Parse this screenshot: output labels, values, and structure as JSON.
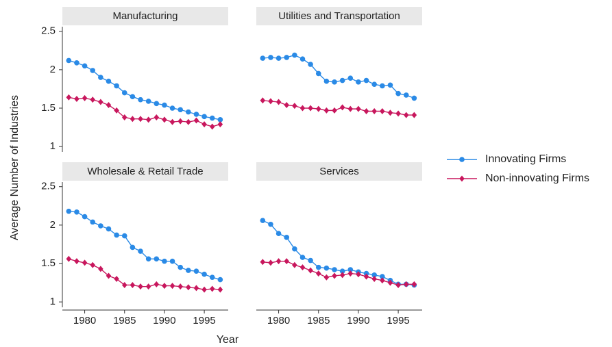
{
  "chart_data": {
    "type": "line",
    "xlabel": "Year",
    "ylabel": "Average Number of Industries",
    "legend": [
      {
        "name": "Innovating Firms",
        "color": "#2a8ae6",
        "marker": "circle"
      },
      {
        "name": "Non-innovating Firms",
        "color": "#c8175d",
        "marker": "diamond"
      }
    ],
    "x": [
      1978,
      1979,
      1980,
      1981,
      1982,
      1983,
      1984,
      1985,
      1986,
      1987,
      1988,
      1989,
      1990,
      1991,
      1992,
      1993,
      1994,
      1995,
      1996,
      1997
    ],
    "xlim": [
      1977.2,
      1998
    ],
    "xticks": [
      1980,
      1985,
      1990,
      1995
    ],
    "ylim": [
      0.93,
      2.56
    ],
    "yticks": [
      1,
      1.5,
      2,
      2.5
    ],
    "panels": [
      {
        "title": "Manufacturing",
        "series": [
          {
            "values": [
              2.12,
              2.09,
              2.05,
              1.99,
              1.9,
              1.85,
              1.79,
              1.7,
              1.65,
              1.61,
              1.59,
              1.56,
              1.54,
              1.5,
              1.48,
              1.45,
              1.42,
              1.39,
              1.37,
              1.35
            ]
          },
          {
            "values": [
              1.64,
              1.62,
              1.63,
              1.61,
              1.58,
              1.54,
              1.47,
              1.38,
              1.36,
              1.36,
              1.35,
              1.38,
              1.35,
              1.32,
              1.33,
              1.32,
              1.34,
              1.29,
              1.26,
              1.29
            ]
          }
        ]
      },
      {
        "title": "Utilities and Transportation",
        "series": [
          {
            "values": [
              2.15,
              2.16,
              2.15,
              2.16,
              2.19,
              2.14,
              2.07,
              1.95,
              1.85,
              1.84,
              1.86,
              1.89,
              1.84,
              1.86,
              1.81,
              1.79,
              1.8,
              1.69,
              1.67,
              1.63
            ]
          },
          {
            "values": [
              1.6,
              1.59,
              1.58,
              1.54,
              1.53,
              1.5,
              1.5,
              1.49,
              1.47,
              1.47,
              1.51,
              1.49,
              1.49,
              1.46,
              1.46,
              1.46,
              1.44,
              1.43,
              1.41,
              1.41
            ]
          }
        ]
      },
      {
        "title": "Wholesale & Retail Trade",
        "series": [
          {
            "values": [
              2.18,
              2.17,
              2.11,
              2.04,
              1.99,
              1.95,
              1.87,
              1.86,
              1.71,
              1.66,
              1.56,
              1.56,
              1.53,
              1.53,
              1.45,
              1.41,
              1.4,
              1.36,
              1.32,
              1.29
            ]
          },
          {
            "values": [
              1.56,
              1.53,
              1.51,
              1.48,
              1.43,
              1.34,
              1.3,
              1.22,
              1.22,
              1.2,
              1.2,
              1.23,
              1.21,
              1.21,
              1.2,
              1.19,
              1.18,
              1.16,
              1.17,
              1.16
            ]
          }
        ]
      },
      {
        "title": "Services",
        "series": [
          {
            "values": [
              2.06,
              2.01,
              1.89,
              1.84,
              1.69,
              1.58,
              1.54,
              1.45,
              1.44,
              1.42,
              1.4,
              1.42,
              1.39,
              1.37,
              1.35,
              1.33,
              1.28,
              1.23,
              1.23,
              1.22
            ]
          },
          {
            "values": [
              1.52,
              1.51,
              1.53,
              1.53,
              1.48,
              1.45,
              1.41,
              1.37,
              1.32,
              1.34,
              1.35,
              1.37,
              1.36,
              1.33,
              1.3,
              1.28,
              1.25,
              1.22,
              1.23,
              1.23
            ]
          }
        ]
      }
    ]
  }
}
